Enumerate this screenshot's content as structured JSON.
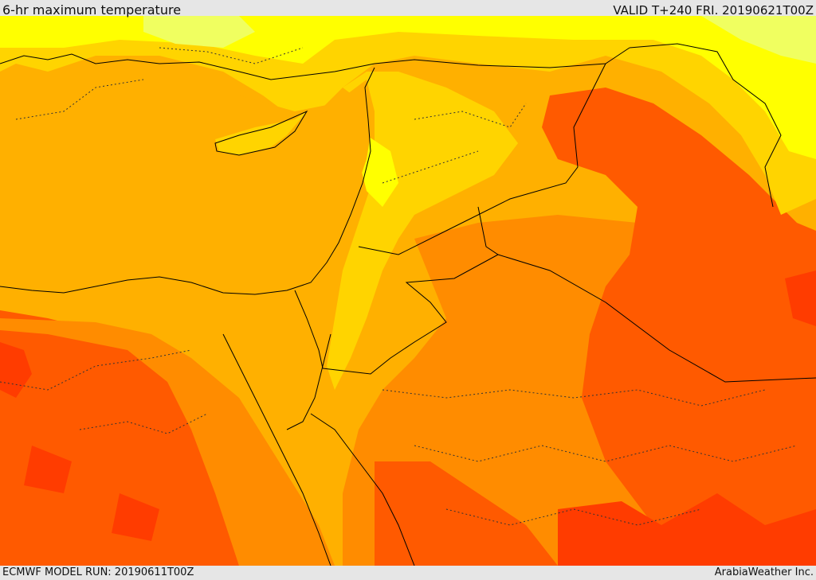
{
  "header": {
    "title": "6-hr maximum temperature",
    "valid": "VALID T+240 FRI. 20190621T00Z"
  },
  "footer": {
    "model_run": "ECMWF MODEL RUN: 20190611T00Z",
    "credit": "ArabiaWeather Inc."
  },
  "colors": {
    "cool_yellow": "#ffff00",
    "warm_yellow": "#ffd400",
    "light_orange": "#ffb000",
    "orange": "#ff8c00",
    "dark_orange": "#ff5a00",
    "red_orange": "#ff3c00",
    "pale_yellow_green": "#f0ff60",
    "border_line": "#000000"
  }
}
